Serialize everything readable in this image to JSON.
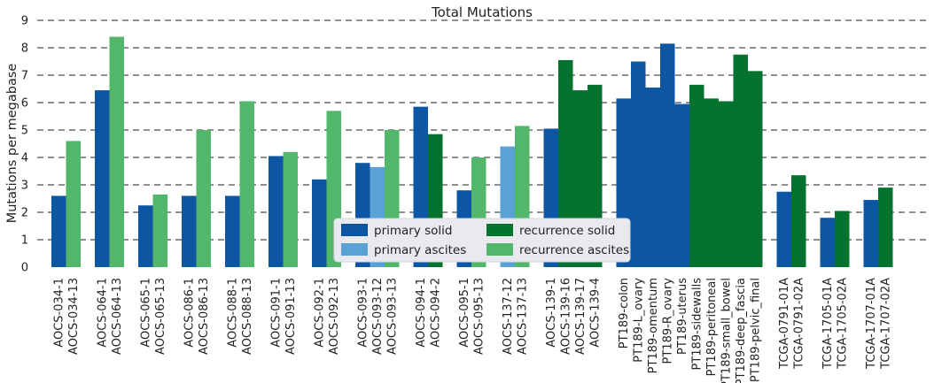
{
  "chart_data": {
    "type": "bar",
    "title": "Total Mutations",
    "xlabel": "",
    "ylabel": "Mutations per megabase",
    "ylim": [
      0,
      9
    ],
    "yticks": [
      0,
      1,
      2,
      3,
      4,
      5,
      6,
      7,
      8,
      9
    ],
    "grid": true,
    "legend": {
      "placement": "bottom-center",
      "entries": [
        {
          "key": "primary_solid",
          "label": "primary solid",
          "color": "#0d56a3"
        },
        {
          "key": "primary_ascites",
          "label": "primary ascites",
          "color": "#5aa1d6"
        },
        {
          "key": "recurrence_solid",
          "label": "recurrence solid",
          "color": "#06722f"
        },
        {
          "key": "recurrence_ascites",
          "label": "recurrence ascites",
          "color": "#52b76a"
        }
      ]
    },
    "groups": [
      {
        "bars": [
          {
            "label": "AOCS-034-1",
            "value": 2.6,
            "type": "primary_solid"
          },
          {
            "label": "AOCS-034-13",
            "value": 4.6,
            "type": "recurrence_ascites"
          }
        ]
      },
      {
        "bars": [
          {
            "label": "AOCS-064-1",
            "value": 6.45,
            "type": "primary_solid"
          },
          {
            "label": "AOCS-064-13",
            "value": 8.4,
            "type": "recurrence_ascites"
          }
        ]
      },
      {
        "bars": [
          {
            "label": "AOCS-065-1",
            "value": 2.25,
            "type": "primary_solid"
          },
          {
            "label": "AOCS-065-13",
            "value": 2.65,
            "type": "recurrence_ascites"
          }
        ]
      },
      {
        "bars": [
          {
            "label": "AOCS-086-1",
            "value": 2.6,
            "type": "primary_solid"
          },
          {
            "label": "AOCS-086-13",
            "value": 5.0,
            "type": "recurrence_ascites"
          }
        ]
      },
      {
        "bars": [
          {
            "label": "AOCS-088-1",
            "value": 2.6,
            "type": "primary_solid"
          },
          {
            "label": "AOCS-088-13",
            "value": 6.05,
            "type": "recurrence_ascites"
          }
        ]
      },
      {
        "bars": [
          {
            "label": "AOCS-091-1",
            "value": 4.05,
            "type": "primary_solid"
          },
          {
            "label": "AOCS-091-13",
            "value": 4.2,
            "type": "recurrence_ascites"
          }
        ]
      },
      {
        "bars": [
          {
            "label": "AOCS-092-1",
            "value": 3.2,
            "type": "primary_solid"
          },
          {
            "label": "AOCS-092-13",
            "value": 5.7,
            "type": "recurrence_ascites"
          }
        ]
      },
      {
        "bars": [
          {
            "label": "AOCS-093-1",
            "value": 3.8,
            "type": "primary_solid"
          },
          {
            "label": "AOCS-093-12",
            "value": 3.65,
            "type": "primary_ascites"
          },
          {
            "label": "AOCS-093-13",
            "value": 5.0,
            "type": "recurrence_ascites"
          }
        ]
      },
      {
        "bars": [
          {
            "label": "AOCS-094-1",
            "value": 5.85,
            "type": "primary_solid"
          },
          {
            "label": "AOCS-094-2",
            "value": 4.85,
            "type": "recurrence_solid"
          }
        ]
      },
      {
        "bars": [
          {
            "label": "AOCS-095-1",
            "value": 2.8,
            "type": "primary_solid"
          },
          {
            "label": "AOCS-095-13",
            "value": 4.0,
            "type": "recurrence_ascites"
          }
        ]
      },
      {
        "bars": [
          {
            "label": "AOCS-137-12",
            "value": 4.4,
            "type": "primary_ascites"
          },
          {
            "label": "AOCS-137-13",
            "value": 5.15,
            "type": "recurrence_ascites"
          }
        ]
      },
      {
        "bars": [
          {
            "label": "AOCS-139-1",
            "value": 5.05,
            "type": "primary_solid"
          },
          {
            "label": "AOCS-139-16",
            "value": 7.55,
            "type": "recurrence_solid"
          },
          {
            "label": "AOCS-139-17",
            "value": 6.45,
            "type": "recurrence_solid"
          },
          {
            "label": "AOCS-139-4",
            "value": 6.65,
            "type": "recurrence_solid"
          }
        ]
      },
      {
        "bars": [
          {
            "label": "PT189-colon",
            "value": 6.15,
            "type": "primary_solid"
          },
          {
            "label": "PT189-L_ovary",
            "value": 7.5,
            "type": "primary_solid"
          },
          {
            "label": "PT189-omentum",
            "value": 6.55,
            "type": "primary_solid"
          },
          {
            "label": "PT189-R_ovary",
            "value": 8.15,
            "type": "primary_solid"
          },
          {
            "label": "PT189-uterus",
            "value": 5.95,
            "type": "primary_solid"
          },
          {
            "label": "PT189-sidewalls",
            "value": 6.65,
            "type": "recurrence_solid"
          },
          {
            "label": "PT189-peritoneal",
            "value": 6.15,
            "type": "recurrence_solid"
          },
          {
            "label": "PT189-small_bowel",
            "value": 6.05,
            "type": "recurrence_solid"
          },
          {
            "label": "PT189-deep_fascia",
            "value": 7.75,
            "type": "recurrence_solid"
          },
          {
            "label": "PT189-pelvic_final",
            "value": 7.15,
            "type": "recurrence_solid"
          }
        ]
      },
      {
        "bars": [
          {
            "label": "TCGA-0791-01A",
            "value": 2.75,
            "type": "primary_solid"
          },
          {
            "label": "TCGA-0791-02A",
            "value": 3.35,
            "type": "recurrence_solid"
          }
        ]
      },
      {
        "bars": [
          {
            "label": "TCGA-1705-01A",
            "value": 1.8,
            "type": "primary_solid"
          },
          {
            "label": "TCGA-1705-02A",
            "value": 2.05,
            "type": "recurrence_solid"
          }
        ]
      },
      {
        "bars": [
          {
            "label": "TCGA-1707-01A",
            "value": 2.45,
            "type": "primary_solid"
          },
          {
            "label": "TCGA-1707-02A",
            "value": 2.9,
            "type": "recurrence_solid"
          }
        ]
      }
    ]
  }
}
